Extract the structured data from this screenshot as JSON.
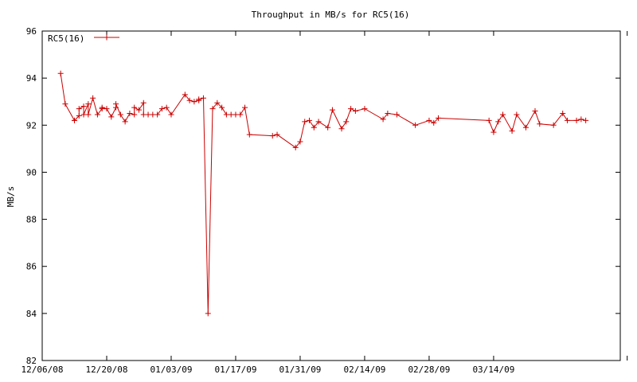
{
  "chart_data": {
    "type": "line",
    "title": "Throughput in MB/s for RC5(16)",
    "xlabel": "",
    "ylabel": "MB/s",
    "ylim": [
      82,
      96
    ],
    "xlim": [
      "12/06/08",
      "04/12/09"
    ],
    "x_is_date": true,
    "yticks": [
      82,
      84,
      86,
      88,
      90,
      92,
      94,
      96
    ],
    "xticks": [
      "12/06/08",
      "12/20/08",
      "01/03/09",
      "01/17/09",
      "01/31/09",
      "02/14/09",
      "02/28/09",
      "03/14/09"
    ],
    "grid": false,
    "legend_position": "top-left",
    "series": [
      {
        "name": "RC5(16)",
        "color": "#cc0000",
        "marker": "plus",
        "points": [
          [
            "12/10/08",
            94.2
          ],
          [
            "12/11/08",
            92.9
          ],
          [
            "12/13/08",
            92.2
          ],
          [
            "12/13/08",
            92.2
          ],
          [
            "12/14/08",
            92.4
          ],
          [
            "12/14/08",
            92.7
          ],
          [
            "12/15/08",
            92.8
          ],
          [
            "12/15/08",
            92.45
          ],
          [
            "12/16/08",
            92.9
          ],
          [
            "12/16/08",
            92.45
          ],
          [
            "12/17/08",
            93.15
          ],
          [
            "12/18/08",
            92.45
          ],
          [
            "12/19/08",
            92.7
          ],
          [
            "12/19/08",
            92.75
          ],
          [
            "12/20/08",
            92.7
          ],
          [
            "12/21/08",
            92.35
          ],
          [
            "12/22/08",
            92.75
          ],
          [
            "12/22/08",
            92.9
          ],
          [
            "12/23/08",
            92.45
          ],
          [
            "12/24/08",
            92.15
          ],
          [
            "12/25/08",
            92.5
          ],
          [
            "12/26/08",
            92.45
          ],
          [
            "12/26/08",
            92.75
          ],
          [
            "12/27/08",
            92.65
          ],
          [
            "12/28/08",
            92.95
          ],
          [
            "12/28/08",
            92.45
          ],
          [
            "12/29/08",
            92.45
          ],
          [
            "12/30/08",
            92.45
          ],
          [
            "12/31/08",
            92.45
          ],
          [
            "01/01/09",
            92.7
          ],
          [
            "01/02/09",
            92.75
          ],
          [
            "01/03/09",
            92.45
          ],
          [
            "01/06/09",
            93.3
          ],
          [
            "01/07/09",
            93.05
          ],
          [
            "01/08/09",
            93.0
          ],
          [
            "01/09/09",
            93.05
          ],
          [
            "01/09/09",
            93.1
          ],
          [
            "01/10/09",
            93.15
          ],
          [
            "01/11/09",
            84.0
          ],
          [
            "01/12/09",
            92.7
          ],
          [
            "01/13/09",
            92.95
          ],
          [
            "01/14/09",
            92.75
          ],
          [
            "01/15/09",
            92.45
          ],
          [
            "01/16/09",
            92.45
          ],
          [
            "01/17/09",
            92.45
          ],
          [
            "01/18/09",
            92.45
          ],
          [
            "01/19/09",
            92.75
          ],
          [
            "01/20/09",
            91.6
          ],
          [
            "01/25/09",
            91.55
          ],
          [
            "01/26/09",
            91.6
          ],
          [
            "01/30/09",
            91.05
          ],
          [
            "01/31/09",
            91.3
          ],
          [
            "02/01/09",
            92.15
          ],
          [
            "02/02/09",
            92.2
          ],
          [
            "02/03/09",
            91.9
          ],
          [
            "02/04/09",
            92.15
          ],
          [
            "02/06/09",
            91.9
          ],
          [
            "02/07/09",
            92.65
          ],
          [
            "02/09/09",
            91.85
          ],
          [
            "02/10/09",
            92.15
          ],
          [
            "02/11/09",
            92.7
          ],
          [
            "02/12/09",
            92.6
          ],
          [
            "02/14/09",
            92.7
          ],
          [
            "02/18/09",
            92.25
          ],
          [
            "02/19/09",
            92.5
          ],
          [
            "02/21/09",
            92.45
          ],
          [
            "02/25/09",
            92.0
          ],
          [
            "02/28/09",
            92.2
          ],
          [
            "03/01/09",
            92.1
          ],
          [
            "03/02/09",
            92.3
          ],
          [
            "03/13/09",
            92.2
          ],
          [
            "03/14/09",
            91.7
          ],
          [
            "03/15/09",
            92.15
          ],
          [
            "03/16/09",
            92.45
          ],
          [
            "03/18/09",
            91.75
          ],
          [
            "03/19/09",
            92.45
          ],
          [
            "03/21/09",
            91.9
          ],
          [
            "03/23/09",
            92.6
          ],
          [
            "03/24/09",
            92.05
          ],
          [
            "03/27/09",
            92.0
          ],
          [
            "03/29/09",
            92.5
          ],
          [
            "03/30/09",
            92.2
          ],
          [
            "04/01/09",
            92.2
          ],
          [
            "04/02/09",
            92.25
          ],
          [
            "04/03/09",
            92.2
          ]
        ]
      }
    ]
  }
}
